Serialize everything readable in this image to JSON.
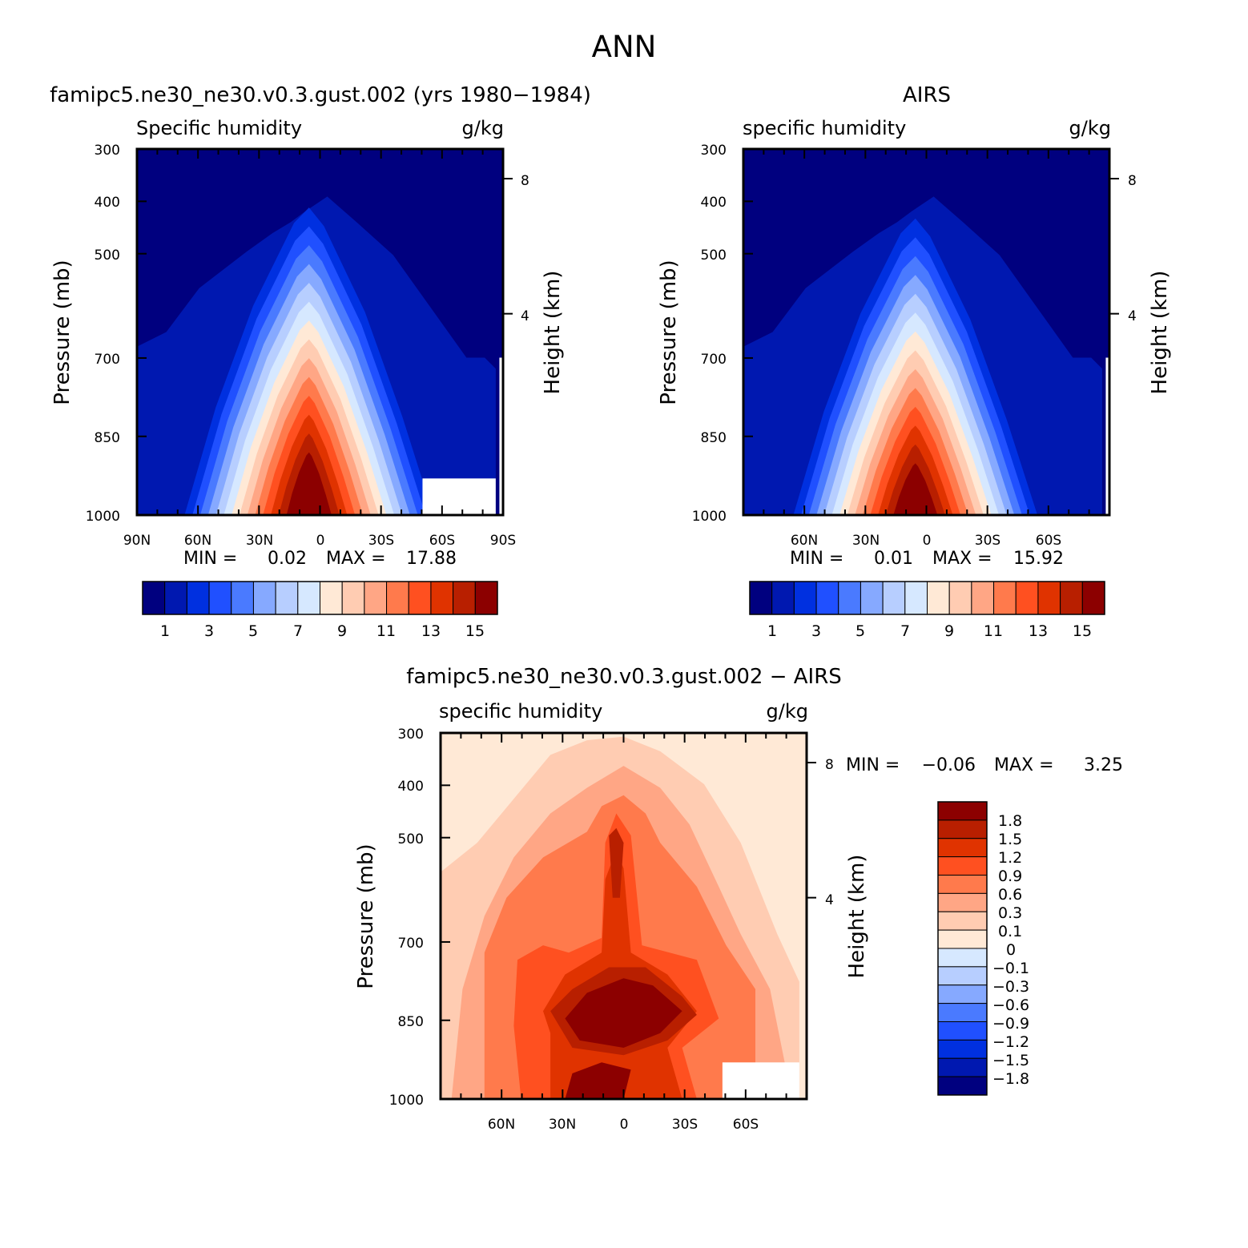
{
  "page_title": "ANN",
  "chart_data": [
    {
      "type": "heatmap",
      "subtype": "filled-contour",
      "title": "famipc5.ne30_ne30.v0.3.gust.002 (yrs 1980−1984)",
      "left_label": "Specific humidity",
      "right_label": "g/kg",
      "ylabel": "Pressure (mb)",
      "ylabel_right": "Height (km)",
      "x_ticks": [
        "90N",
        "60N",
        "30N",
        "0",
        "30S",
        "60S",
        "90S"
      ],
      "y_ticks": [
        "300",
        "400",
        "500",
        "700",
        "850",
        "1000"
      ],
      "y_right_ticks": [
        "8",
        "4"
      ],
      "ylim": [
        1000,
        300
      ],
      "xlim": [
        90,
        -90
      ],
      "min_label": "MIN =",
      "min_value": "0.02",
      "max_label": "MAX =",
      "max_value": "17.88",
      "colorbar_ticks": [
        "1",
        "3",
        "5",
        "7",
        "9",
        "11",
        "13",
        "15"
      ],
      "levels": [
        1,
        2,
        3,
        4,
        5,
        6,
        7,
        8,
        9,
        10,
        11,
        12,
        13,
        14,
        15
      ],
      "colors": [
        "#00007f",
        "#0018b0",
        "#0030e0",
        "#2050ff",
        "#4a7aff",
        "#86a9ff",
        "#b7ceff",
        "#d6e8ff",
        "#ffe9d6",
        "#ffccb2",
        "#ffa685",
        "#ff7a4c",
        "#ff5020",
        "#e03300",
        "#b81f00",
        "#8c0000"
      ]
    },
    {
      "type": "heatmap",
      "subtype": "filled-contour",
      "title": "AIRS",
      "left_label": "specific humidity",
      "right_label": "g/kg",
      "ylabel": "Pressure (mb)",
      "ylabel_right": "Height (km)",
      "x_ticks": [
        "60N",
        "30N",
        "0",
        "30S",
        "60S"
      ],
      "y_ticks": [
        "300",
        "400",
        "500",
        "700",
        "850",
        "1000"
      ],
      "y_right_ticks": [
        "8",
        "4"
      ],
      "ylim": [
        1000,
        300
      ],
      "xlim": [
        90,
        -90
      ],
      "min_label": "MIN =",
      "min_value": "0.01",
      "max_label": "MAX =",
      "max_value": "15.92",
      "colorbar_ticks": [
        "1",
        "3",
        "5",
        "7",
        "9",
        "11",
        "13",
        "15"
      ],
      "levels": [
        1,
        2,
        3,
        4,
        5,
        6,
        7,
        8,
        9,
        10,
        11,
        12,
        13,
        14,
        15
      ],
      "colors": [
        "#00007f",
        "#0018b0",
        "#0030e0",
        "#2050ff",
        "#4a7aff",
        "#86a9ff",
        "#b7ceff",
        "#d6e8ff",
        "#ffe9d6",
        "#ffccb2",
        "#ffa685",
        "#ff7a4c",
        "#ff5020",
        "#e03300",
        "#b81f00",
        "#8c0000"
      ]
    },
    {
      "type": "heatmap",
      "subtype": "filled-contour",
      "title": "famipc5.ne30_ne30.v0.3.gust.002 − AIRS",
      "left_label": "specific humidity",
      "right_label": "g/kg",
      "ylabel": "Pressure (mb)",
      "ylabel_right": "Height (km)",
      "x_ticks": [
        "60N",
        "30N",
        "0",
        "30S",
        "60S"
      ],
      "y_ticks": [
        "300",
        "400",
        "500",
        "700",
        "850",
        "1000"
      ],
      "y_right_ticks": [
        "8",
        "4"
      ],
      "ylim": [
        1000,
        300
      ],
      "xlim": [
        90,
        -90
      ],
      "min_label": "MIN =",
      "min_value": "−0.06",
      "max_label": "MAX =",
      "max_value": "3.25",
      "colorbar_ticks": [
        "1.8",
        "1.5",
        "1.2",
        "0.9",
        "0.6",
        "0.3",
        "0.1",
        "0",
        "−0.1",
        "−0.3",
        "−0.6",
        "−0.9",
        "−1.2",
        "−1.5",
        "−1.8"
      ],
      "levels": [
        1.8,
        1.5,
        1.2,
        0.9,
        0.6,
        0.3,
        0.1,
        0,
        -0.1,
        -0.3,
        -0.6,
        -0.9,
        -1.2,
        -1.5,
        -1.8
      ],
      "colors": [
        "#8c0000",
        "#b81f00",
        "#e03300",
        "#ff5020",
        "#ff7a4c",
        "#ffa685",
        "#ffccb2",
        "#ffe9d6",
        "#d6e8ff",
        "#b7ceff",
        "#86a9ff",
        "#4a7aff",
        "#2050ff",
        "#0030e0",
        "#0018b0",
        "#00007f"
      ]
    }
  ]
}
